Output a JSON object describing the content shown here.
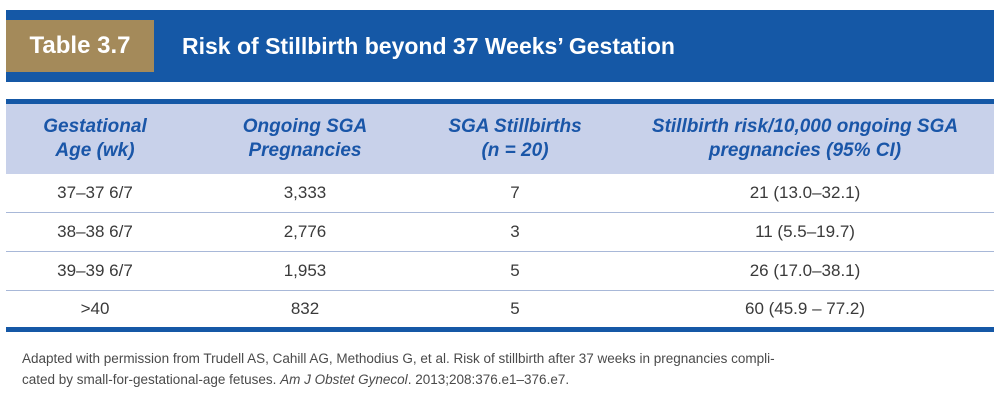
{
  "table": {
    "label": "Table 3.7",
    "title": "Risk of Stillbirth beyond 37 Weeks’ Gestation",
    "headers": [
      {
        "line1": "Gestational",
        "line2": "Age (wk)"
      },
      {
        "line1": "Ongoing SGA",
        "line2": "Pregnancies"
      },
      {
        "line1": "SGA Stillbirths",
        "line2": "(n = 20)"
      },
      {
        "line1": "Stillbirth risk/10,000 ongoing SGA",
        "line2": "pregnancies (95% CI)"
      }
    ],
    "rows": [
      [
        "37–37 6/7",
        "3,333",
        "7",
        "21 (13.0–32.1)"
      ],
      [
        "38–38 6/7",
        "2,776",
        "3",
        "11 (5.5–19.7)"
      ],
      [
        "39–39 6/7",
        "1,953",
        "5",
        "26 (17.0–38.1)"
      ],
      [
        ">40",
        "832",
        "5",
        "60 (45.9 – 77.2)"
      ]
    ]
  },
  "footnote": {
    "text1": "Adapted with permission from Trudell AS, Cahill AG, Methodius G, et al. Risk of stillbirth after 37 weeks in pregnancies compli-",
    "text2_plain": "cated by small-for-gestational-age fetuses. ",
    "journal": "Am J Obstet Gynecol",
    "text2_end": ". 2013;208:376.e1–376.e7."
  },
  "colors": {
    "banner": "#1558a6",
    "label_box": "#a48a5a",
    "header_band": "#c8d1ea",
    "header_text": "#1a56a8"
  }
}
